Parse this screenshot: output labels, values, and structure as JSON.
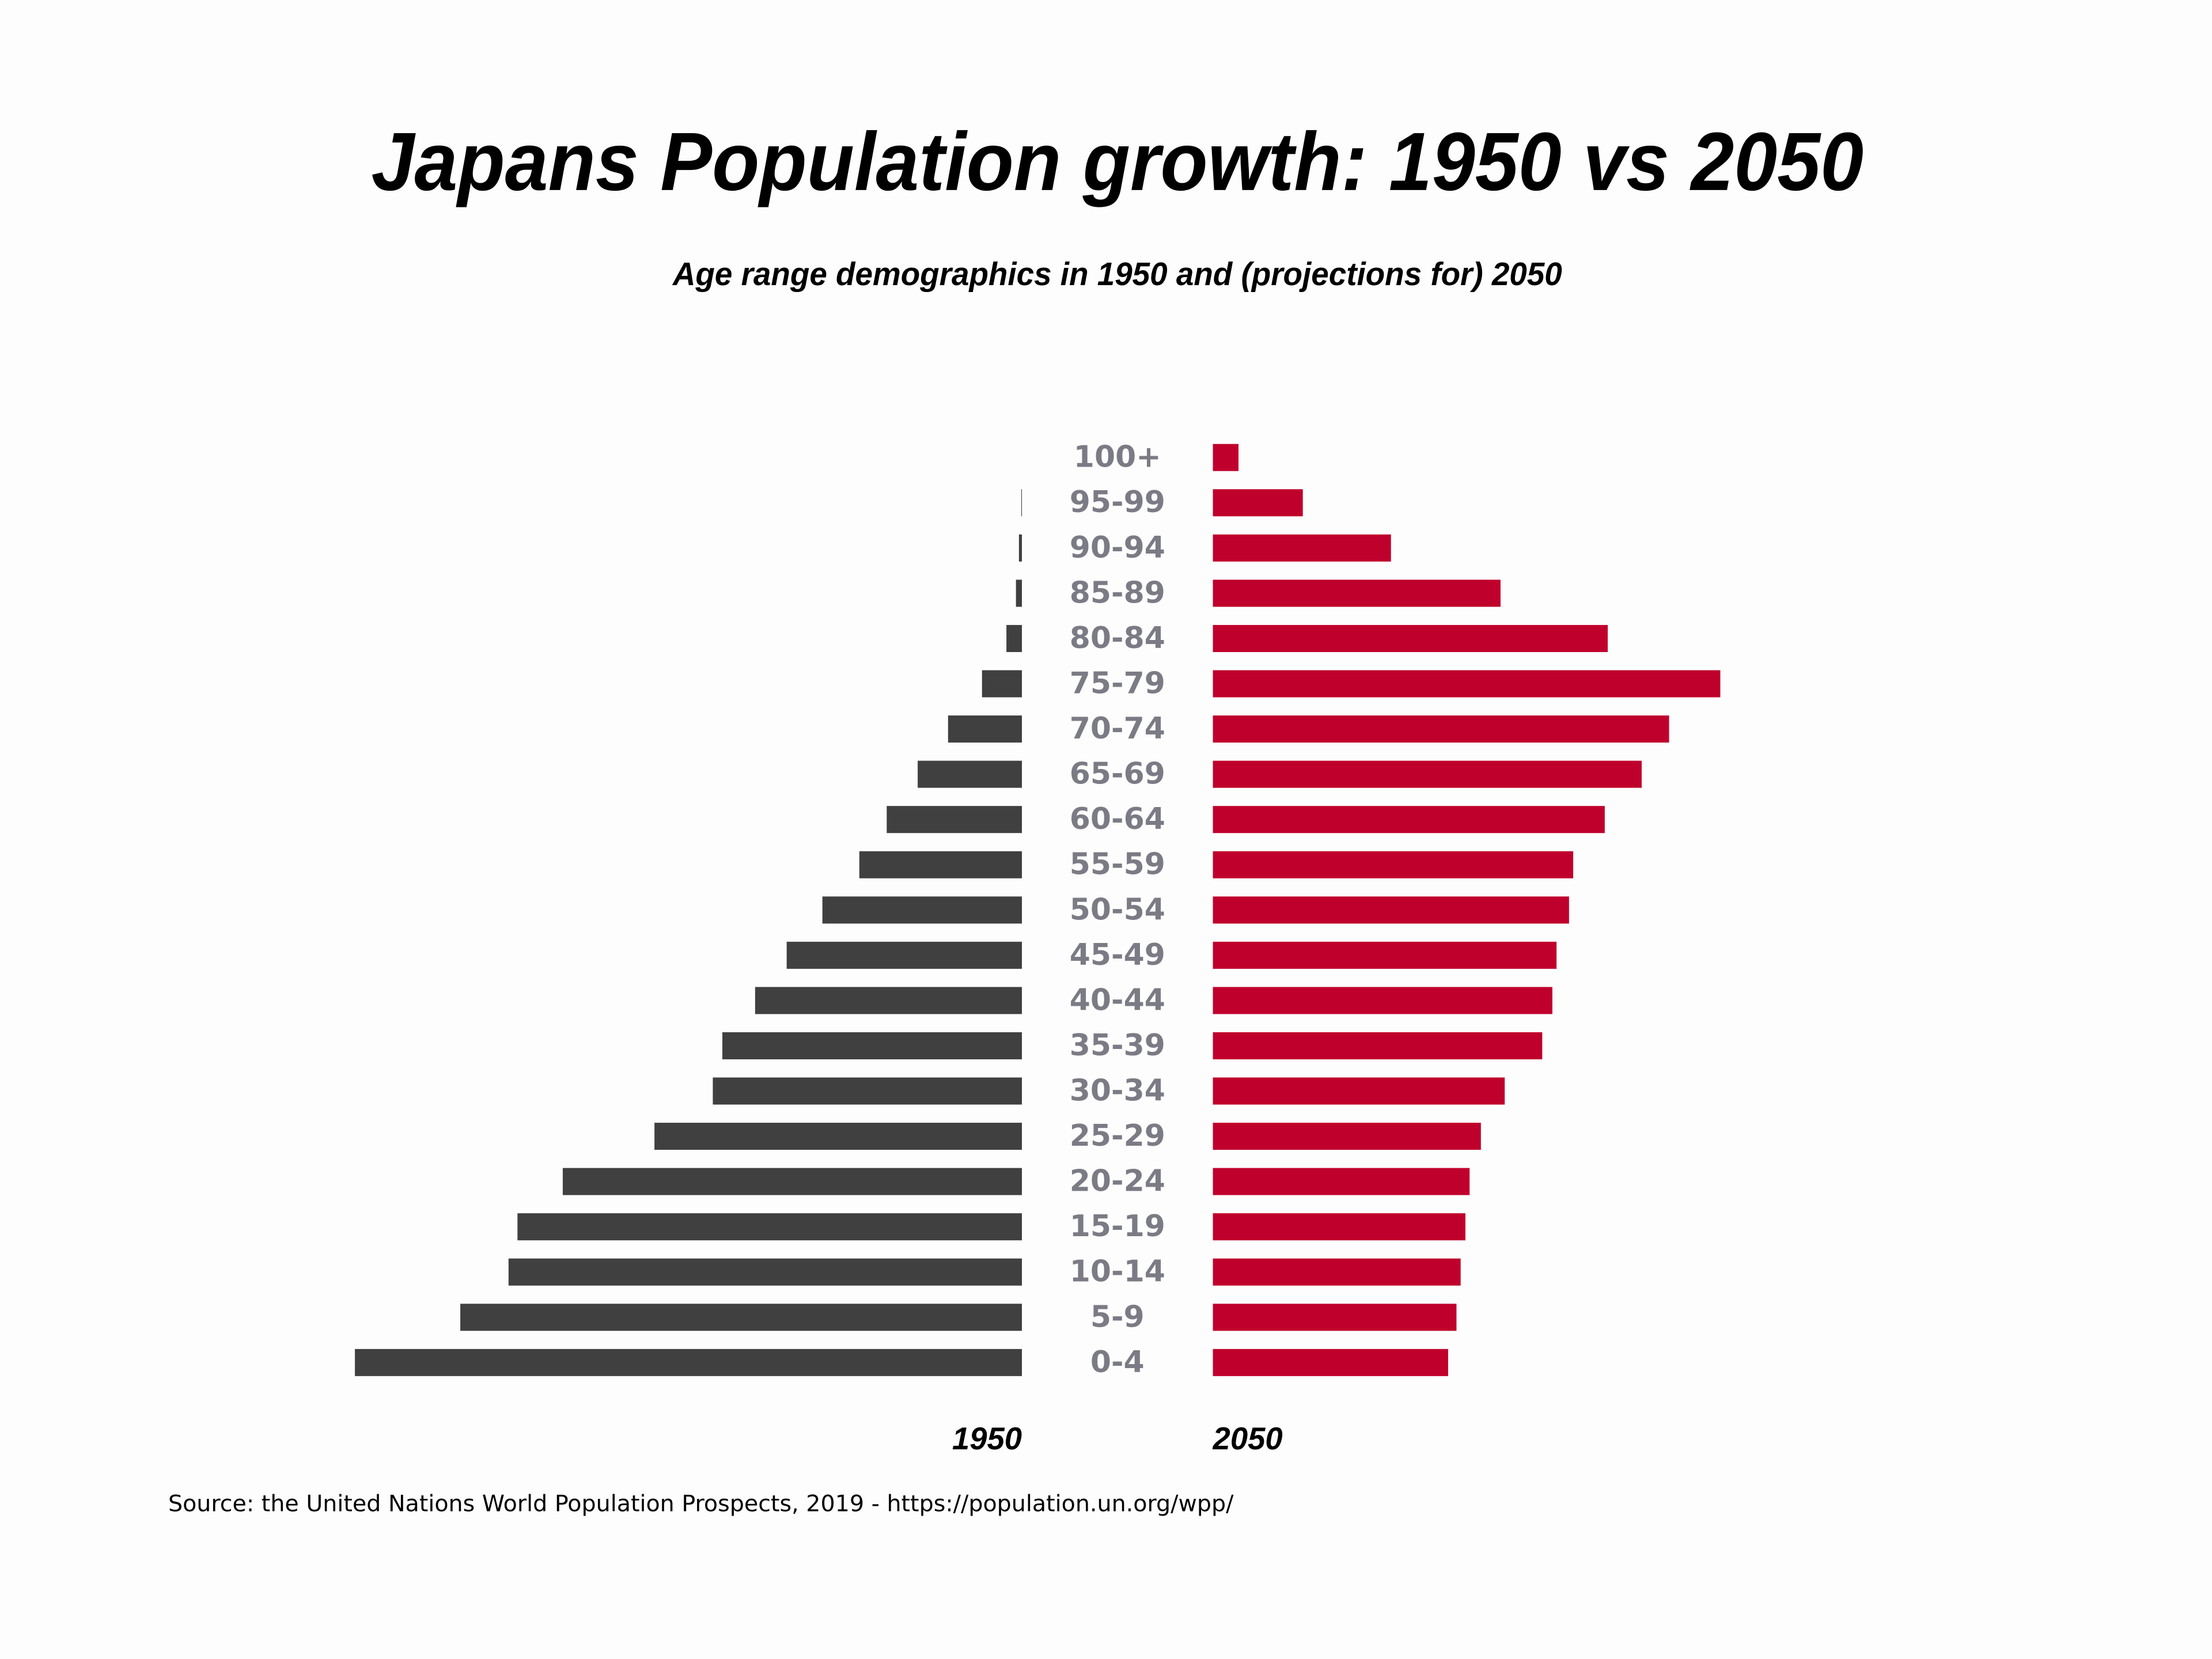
{
  "chart_data": {
    "type": "pyramid",
    "title": "Japans Population growth: 1950 vs 2050",
    "subtitle": "Age range demographics in 1950 and (projections for) 2050",
    "source": "Source: the United Nations World Population Prospects, 2019 - https://population.un.org/wpp/",
    "categories": [
      "0-4",
      "5-9",
      "10-14",
      "15-19",
      "20-24",
      "25-29",
      "30-34",
      "35-39",
      "40-44",
      "45-49",
      "50-54",
      "55-59",
      "60-64",
      "65-69",
      "70-74",
      "75-79",
      "80-84",
      "85-89",
      "90-94",
      "95-99",
      "100+"
    ],
    "series": [
      {
        "name": "1950",
        "color": "#404040",
        "side": "left",
        "values": [
          11.2,
          9.43,
          8.62,
          8.47,
          7.71,
          6.17,
          5.19,
          5.03,
          4.48,
          3.95,
          3.35,
          2.73,
          2.27,
          1.75,
          1.24,
          0.67,
          0.26,
          0.1,
          0.05,
          0.01,
          0.0
        ]
      },
      {
        "name": "2050",
        "color": "#c0002c",
        "side": "right",
        "values": [
          3.95,
          4.09,
          4.16,
          4.24,
          4.31,
          4.5,
          4.9,
          5.53,
          5.7,
          5.77,
          5.98,
          6.05,
          6.58,
          7.2,
          7.66,
          8.52,
          6.63,
          4.83,
          2.99,
          1.51,
          0.43
        ]
      }
    ]
  }
}
